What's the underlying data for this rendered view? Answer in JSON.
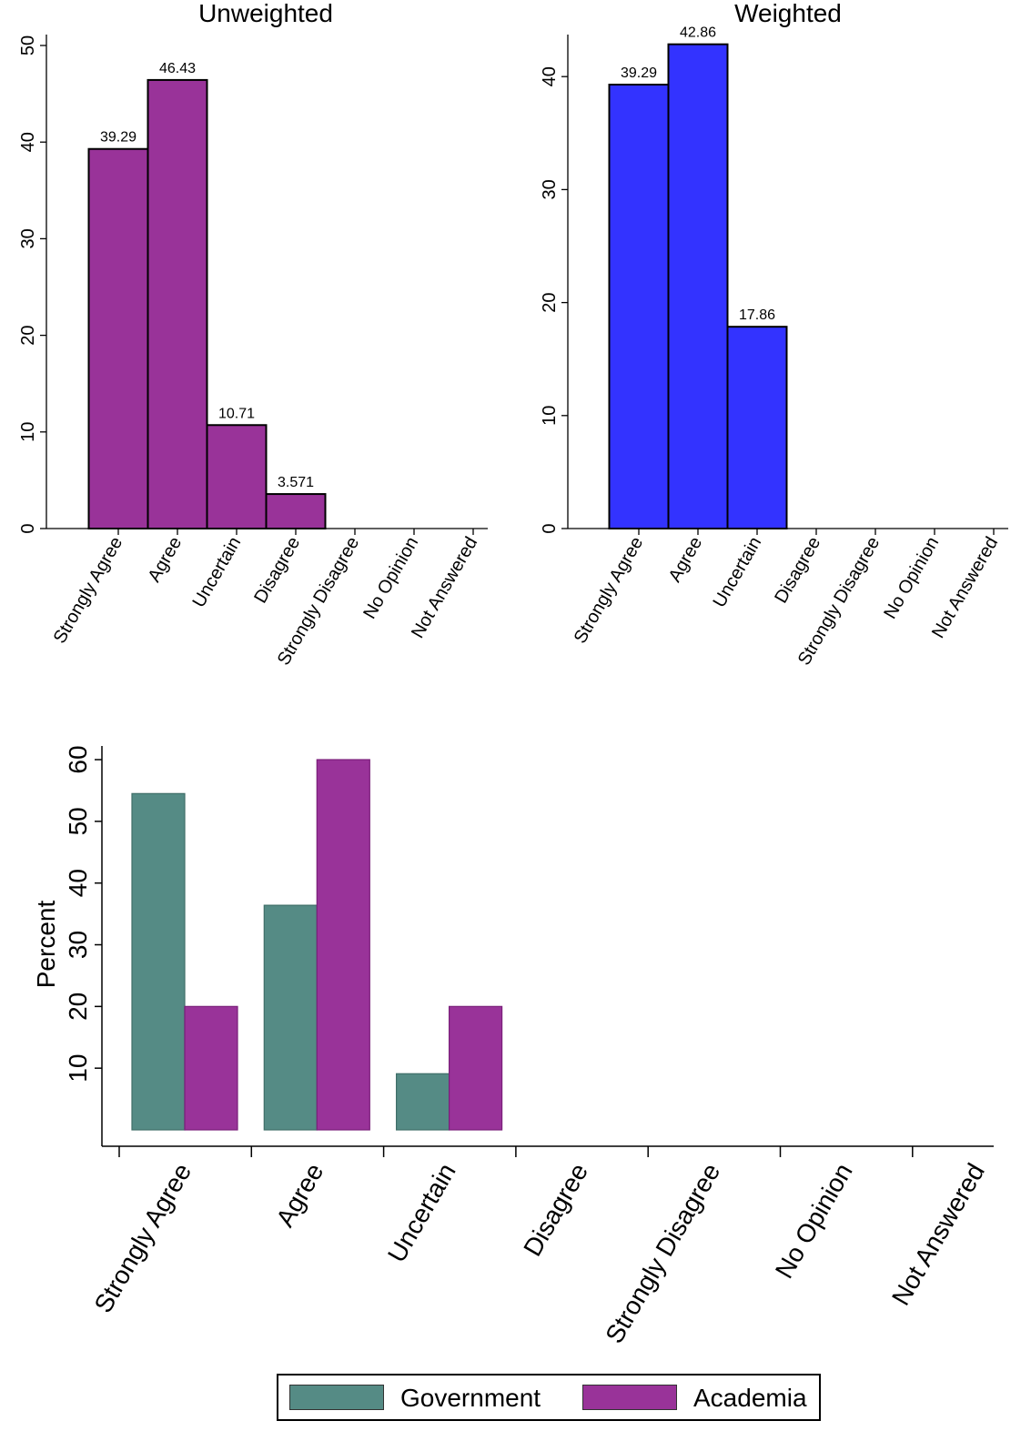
{
  "colors": {
    "unweighted": "#993399",
    "weighted": "#3333ff",
    "government": "#558b85",
    "academia": "#993399",
    "outline": "#000000"
  },
  "chart_data": [
    {
      "type": "bar",
      "title": "Unweighted",
      "categories": [
        "Strongly Agree",
        "Agree",
        "Uncertain",
        "Disagree",
        "Strongly Disagree",
        "No Opinion",
        "Not Answered"
      ],
      "values": [
        39.29,
        46.43,
        10.71,
        3.571,
        0,
        0,
        0
      ],
      "value_labels": [
        "39.29",
        "46.43",
        "10.71",
        "3.571",
        null,
        null,
        null
      ],
      "yticks": [
        0,
        10,
        20,
        30,
        40,
        50
      ],
      "ylim": [
        0,
        50
      ],
      "xlabel": "",
      "ylabel": "",
      "grid": false
    },
    {
      "type": "bar",
      "title": "Weighted",
      "categories": [
        "Strongly Agree",
        "Agree",
        "Uncertain",
        "Disagree",
        "Strongly Disagree",
        "No Opinion",
        "Not Answered"
      ],
      "values": [
        39.29,
        42.86,
        17.86,
        0,
        0,
        0,
        0
      ],
      "value_labels": [
        "39.29",
        "42.86",
        "17.86",
        null,
        null,
        null,
        null
      ],
      "yticks": [
        0,
        10,
        20,
        30,
        40
      ],
      "ylim": [
        0,
        44
      ],
      "xlabel": "",
      "ylabel": "",
      "grid": false
    },
    {
      "type": "bar",
      "title": "",
      "categories": [
        "Strongly Agree",
        "Agree",
        "Uncertain",
        "Disagree",
        "Strongly Disagree",
        "No Opinion",
        "Not Answered"
      ],
      "series": [
        {
          "name": "Government",
          "values": [
            54.5,
            36.4,
            9.1,
            0,
            0,
            0,
            0
          ]
        },
        {
          "name": "Academia",
          "values": [
            20,
            60,
            20,
            0,
            0,
            0,
            0
          ]
        }
      ],
      "yticks": [
        10,
        20,
        30,
        40,
        50,
        60
      ],
      "ylim": [
        0,
        60
      ],
      "xlabel": "",
      "ylabel": "Percent",
      "legend_position": "bottom",
      "grid": false
    }
  ]
}
